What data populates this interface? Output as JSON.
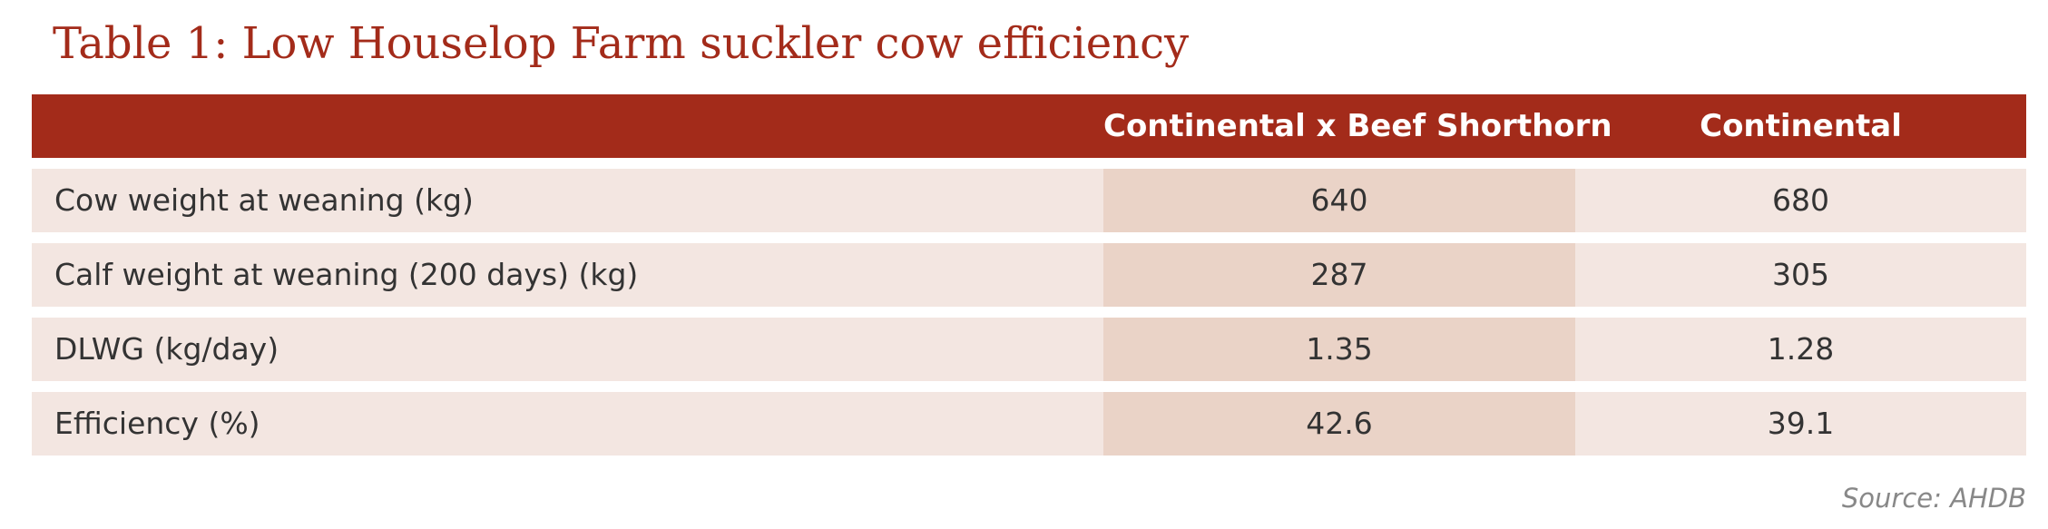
{
  "title": "Table 1: Low Houselop Farm suckler cow efficiency",
  "table": {
    "header": [
      "Continental x Beef Shorthorn",
      "Continental"
    ],
    "rows": [
      [
        "Cow weight at weaning (kg)",
        "640",
        "680"
      ],
      [
        "Calf weight at weaning (200 days) (kg)",
        "287",
        "305"
      ],
      [
        "DLWG (kg/day)",
        "1.35",
        "1.28"
      ],
      [
        "Efficiency (%)",
        "42.6",
        "39.1"
      ]
    ]
  },
  "source": "Source: AHDB"
}
